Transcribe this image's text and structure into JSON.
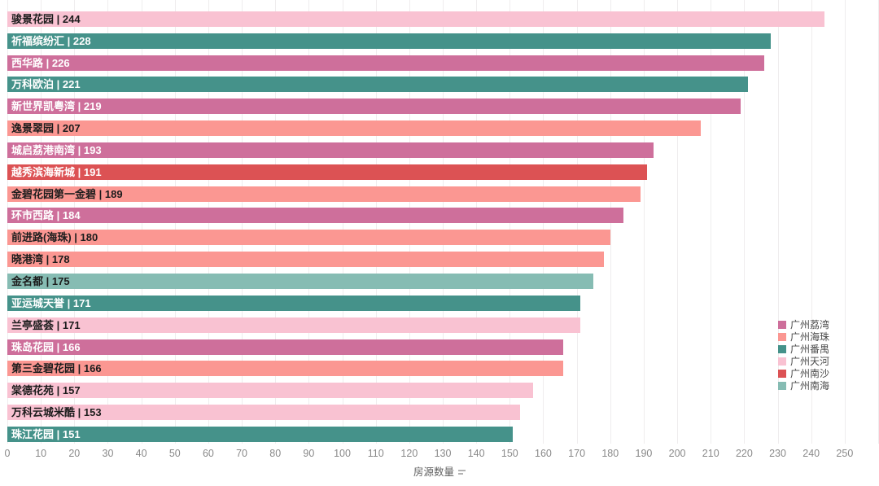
{
  "chart_data": {
    "type": "bar",
    "orientation": "horizontal",
    "title": "",
    "xlabel": "房源数量",
    "ylabel": "",
    "xlim": [
      0,
      260
    ],
    "x_ticks": [
      0,
      10,
      20,
      30,
      40,
      50,
      60,
      70,
      80,
      90,
      100,
      110,
      120,
      130,
      140,
      150,
      160,
      170,
      180,
      190,
      200,
      210,
      220,
      230,
      240,
      250
    ],
    "grid": true,
    "legend_position": "right",
    "label_separator": " | ",
    "bars": [
      {
        "name": "骏景花园",
        "value": 244,
        "group": "广州天河"
      },
      {
        "name": "祈福缤纷汇",
        "value": 228,
        "group": "广州番禺"
      },
      {
        "name": "西华路",
        "value": 226,
        "group": "广州荔湾"
      },
      {
        "name": "万科欧泊",
        "value": 221,
        "group": "广州番禺"
      },
      {
        "name": "新世界凯粤湾",
        "value": 219,
        "group": "广州荔湾"
      },
      {
        "name": "逸景翠园",
        "value": 207,
        "group": "广州海珠"
      },
      {
        "name": "城启荔港南湾",
        "value": 193,
        "group": "广州荔湾"
      },
      {
        "name": "越秀滨海新城",
        "value": 191,
        "group": "广州南沙"
      },
      {
        "name": "金碧花园第一金碧",
        "value": 189,
        "group": "广州海珠"
      },
      {
        "name": "环市西路",
        "value": 184,
        "group": "广州荔湾"
      },
      {
        "name": "前进路(海珠)",
        "value": 180,
        "group": "广州海珠"
      },
      {
        "name": "晓港湾",
        "value": 178,
        "group": "广州海珠"
      },
      {
        "name": "金名都",
        "value": 175,
        "group": "广州南海"
      },
      {
        "name": "亚运城天誉",
        "value": 171,
        "group": "广州番禺"
      },
      {
        "name": "兰亭盛荟",
        "value": 171,
        "group": "广州天河"
      },
      {
        "name": "珠岛花园",
        "value": 166,
        "group": "广州荔湾"
      },
      {
        "name": "第三金碧花园",
        "value": 166,
        "group": "广州海珠"
      },
      {
        "name": "棠德花苑",
        "value": 157,
        "group": "广州天河"
      },
      {
        "name": "万科云城米酷",
        "value": 153,
        "group": "广州天河"
      },
      {
        "name": "珠江花园",
        "value": 151,
        "group": "广州番禺"
      }
    ],
    "groups": {
      "广州荔湾": {
        "color": "#ce6f9b",
        "text_color": "#ffffff"
      },
      "广州海珠": {
        "color": "#fb9792",
        "text_color": "#1c1c1c"
      },
      "广州番禺": {
        "color": "#45928a",
        "text_color": "#ffffff"
      },
      "广州天河": {
        "color": "#f9c2d2",
        "text_color": "#1c1c1c"
      },
      "广州南沙": {
        "color": "#dc5254",
        "text_color": "#ffffff"
      },
      "广州南海": {
        "color": "#86bcb3",
        "text_color": "#1c1c1c"
      }
    },
    "legend": [
      "广州荔湾",
      "广州海珠",
      "广州番禺",
      "广州天河",
      "广州南沙",
      "广州南海"
    ],
    "colors": {
      "gridline": "#efedee",
      "tick_text": "#898989",
      "axis_title_text": "#606060"
    }
  }
}
